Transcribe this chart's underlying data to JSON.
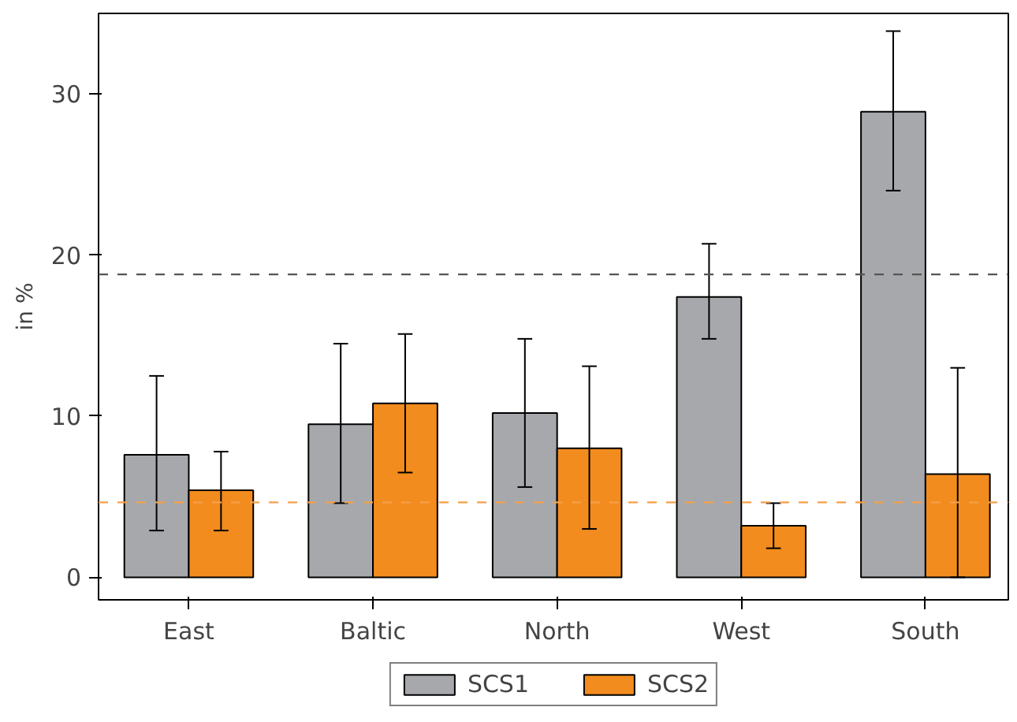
{
  "chart_data": {
    "type": "bar",
    "ylabel": "in %",
    "categories": [
      "East",
      "Baltic",
      "North",
      "West",
      "South"
    ],
    "series": [
      {
        "name": "SCS1",
        "color": "#a7a8ac",
        "values": [
          7.6,
          9.5,
          10.2,
          17.4,
          28.9
        ],
        "errors": [
          [
            2.9,
            12.5
          ],
          [
            4.6,
            14.5
          ],
          [
            5.6,
            14.8
          ],
          [
            14.8,
            20.7
          ],
          [
            24.0,
            33.9
          ]
        ]
      },
      {
        "name": "SCS2",
        "color": "#f28c1e",
        "values": [
          5.4,
          10.8,
          8.0,
          3.2,
          6.4
        ],
        "errors": [
          [
            2.9,
            7.8
          ],
          [
            6.5,
            15.1
          ],
          [
            3.0,
            13.1
          ],
          [
            1.8,
            4.6
          ],
          [
            0.0,
            13.0
          ]
        ]
      }
    ],
    "ylim": [
      -1.4,
      35
    ],
    "yticks": [
      0,
      10,
      20,
      30
    ],
    "grid": false,
    "legend": "bottom",
    "ref_lines": [
      {
        "axis": "y",
        "value": 18.8,
        "color": "#555555",
        "line_style": "dashed"
      },
      {
        "axis": "y",
        "value": 4.65,
        "color": "#f5a04a",
        "line_style": "dashed"
      }
    ]
  }
}
